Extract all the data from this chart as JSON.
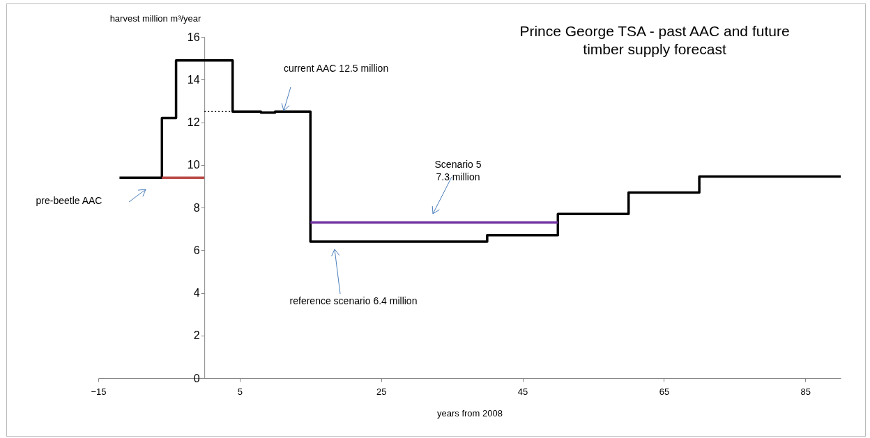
{
  "chart_data": {
    "type": "step",
    "title": "Prince George TSA  - past  AAC and future\ntimber supply forecast",
    "xlabel": "years from 2008",
    "ylabel": "harvest  million m³/year",
    "xlim": [
      -15,
      90
    ],
    "xticks": [
      -15,
      5,
      25,
      45,
      65,
      85
    ],
    "ylim": [
      0,
      16
    ],
    "yticks": [
      0,
      2,
      4,
      6,
      8,
      10,
      12,
      14,
      16
    ],
    "grid": false,
    "marker": "none",
    "series": [
      {
        "color": "#000000",
        "x": [
          -12,
          -6,
          -4,
          4,
          8,
          10,
          15,
          40,
          50,
          60,
          70,
          90
        ],
        "values": [
          9.4,
          12.2,
          14.9,
          12.5,
          12.45,
          12.5,
          6.4,
          6.7,
          7.7,
          8.7,
          9.45,
          9.45
        ]
      },
      {
        "type": "line",
        "color": "#b94a48",
        "x": [
          -6,
          0
        ],
        "values": [
          9.4,
          9.4
        ]
      },
      {
        "type": "line",
        "color": "#000000",
        "line_style": "dotted",
        "x": [
          0,
          4
        ],
        "values": [
          12.5,
          12.5
        ]
      },
      {
        "type": "line",
        "color": "#7030a0",
        "x": [
          15,
          50
        ],
        "values": [
          7.3,
          7.3
        ]
      }
    ],
    "annotations": [
      "current AAC 12.5 million",
      "Scenario 5\n7.3 million",
      "reference scenario 6.4 million",
      "pre-beetle AAC"
    ]
  }
}
